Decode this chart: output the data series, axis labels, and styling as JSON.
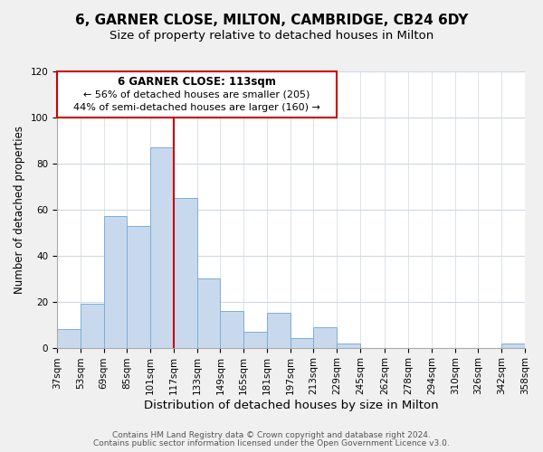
{
  "title": "6, GARNER CLOSE, MILTON, CAMBRIDGE, CB24 6DY",
  "subtitle": "Size of property relative to detached houses in Milton",
  "xlabel": "Distribution of detached houses by size in Milton",
  "ylabel": "Number of detached properties",
  "bin_edges": [
    37,
    53,
    69,
    85,
    101,
    117,
    133,
    149,
    165,
    181,
    197,
    213,
    229,
    245,
    262,
    278,
    294,
    310,
    326,
    342,
    358
  ],
  "bar_heights": [
    8,
    19,
    57,
    53,
    87,
    65,
    30,
    16,
    7,
    15,
    4,
    9,
    2,
    0,
    0,
    0,
    0,
    0,
    0,
    2
  ],
  "bar_color": "#c8d9ee",
  "bar_edge_color": "#7bafd4",
  "vline_x": 117,
  "vline_color": "#cc0000",
  "ylim": [
    0,
    120
  ],
  "yticks": [
    0,
    20,
    40,
    60,
    80,
    100,
    120
  ],
  "annotation_title": "6 GARNER CLOSE: 113sqm",
  "annotation_line1": "← 56% of detached houses are smaller (205)",
  "annotation_line2": "44% of semi-detached houses are larger (160) →",
  "footer1": "Contains HM Land Registry data © Crown copyright and database right 2024.",
  "footer2": "Contains public sector information licensed under the Open Government Licence v3.0.",
  "title_fontsize": 11,
  "subtitle_fontsize": 9.5,
  "xlabel_fontsize": 9.5,
  "ylabel_fontsize": 8.5,
  "tick_fontsize": 7.5,
  "annotation_title_fontsize": 8.5,
  "annotation_fontsize": 8,
  "footer_fontsize": 6.5,
  "background_color": "#f0f0f0",
  "plot_bg_color": "#ffffff",
  "grid_color": "#d0d8e0"
}
